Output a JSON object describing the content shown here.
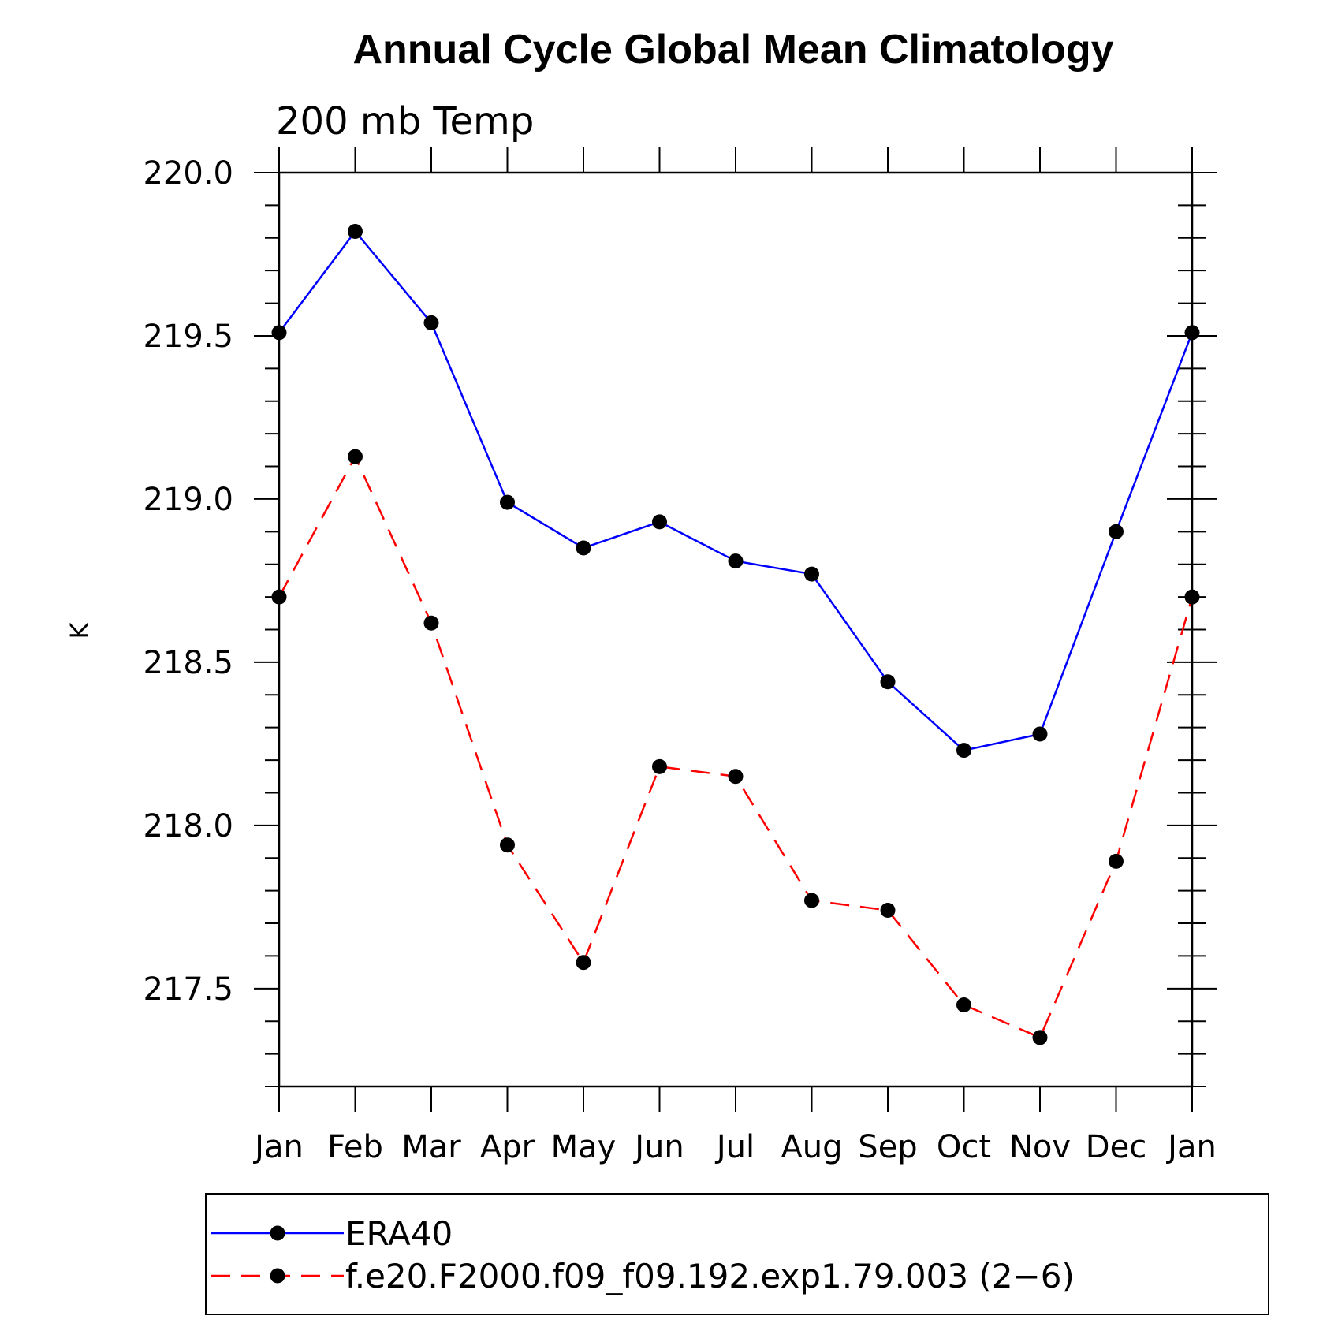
{
  "chart_data": {
    "type": "line",
    "title": "Annual Cycle Global Mean Climatology",
    "subtitle": "200 mb Temp",
    "xlabel": "",
    "ylabel": "K",
    "categories": [
      "Jan",
      "Feb",
      "Mar",
      "Apr",
      "May",
      "Jun",
      "Jul",
      "Aug",
      "Sep",
      "Oct",
      "Nov",
      "Dec",
      "Jan"
    ],
    "ylim": [
      217.2,
      220.0
    ],
    "yticks": [
      "220.0",
      "219.5",
      "219.0",
      "218.5",
      "218.0",
      "217.5"
    ],
    "ytick_values": [
      220.0,
      219.5,
      219.0,
      218.5,
      218.0,
      217.5
    ],
    "grid": false,
    "legend_position": "bottom",
    "series": [
      {
        "name": "ERA40",
        "color": "#0000ff",
        "dash": "solid",
        "values": [
          219.51,
          219.82,
          219.54,
          218.99,
          218.85,
          218.93,
          218.81,
          218.77,
          218.44,
          218.23,
          218.28,
          218.9,
          219.51
        ]
      },
      {
        "name": "f.e20.F2000.f09_f09.192.exp1.79.003 (2−6)",
        "color": "#ff0000",
        "dash": "dashed",
        "values": [
          218.7,
          219.13,
          218.62,
          217.94,
          217.58,
          218.18,
          218.15,
          217.77,
          217.74,
          217.45,
          217.35,
          217.89,
          218.7
        ]
      }
    ]
  }
}
